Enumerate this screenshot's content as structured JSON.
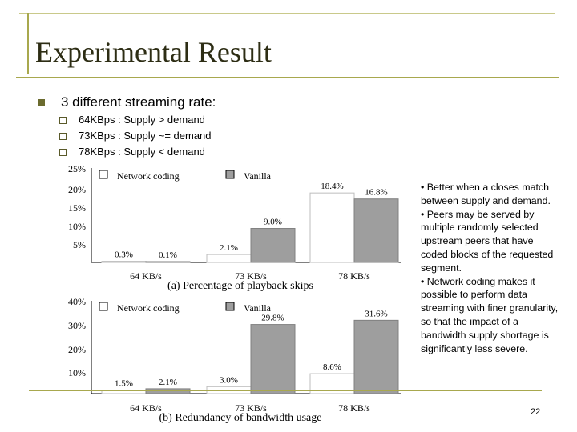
{
  "slide": {
    "title": "Experimental Result",
    "bullet": "3 different streaming rate:",
    "sub_bullets": [
      "64KBps : Supply > demand",
      "73KBps : Supply ~= demand",
      "78KBps : Supply < demand"
    ],
    "notes": [
      "• Better when a closes match between supply and demand.",
      "• Peers may be served by multiple randomly selected upstream peers that have coded blocks of the requested segment.",
      "• Network coding makes it possible to perform data streaming with finer granularity, so that the impact of a bandwidth supply shortage is significantly less severe."
    ],
    "page_number": "22"
  },
  "chart_data": [
    {
      "type": "bar",
      "title": "(a) Percentage of playback skips",
      "categories": [
        "64 KB/s",
        "73 KB/s",
        "78 KB/s"
      ],
      "series": [
        {
          "name": "Network coding",
          "values": [
            0.3,
            2.1,
            18.4
          ],
          "labels": [
            "0.3%",
            "2.1%",
            "18.4%"
          ],
          "color": "#ffffff"
        },
        {
          "name": "Vanilla",
          "values": [
            0.1,
            9.0,
            16.8
          ],
          "labels": [
            "0.1%",
            "9.0%",
            "16.8%"
          ],
          "color": "#9e9e9e"
        }
      ],
      "yticks": [
        "25%",
        "20%",
        "15%",
        "10%",
        "5%"
      ],
      "ylim": [
        0,
        25
      ],
      "legend_position": "top",
      "grid": false
    },
    {
      "type": "bar",
      "title": "(b) Redundancy of bandwidth usage",
      "categories": [
        "64 KB/s",
        "73 KB/s",
        "78 KB/s"
      ],
      "series": [
        {
          "name": "Network coding",
          "values": [
            1.5,
            3.0,
            8.6
          ],
          "labels": [
            "1.5%",
            "3.0%",
            "8.6%"
          ],
          "color": "#ffffff"
        },
        {
          "name": "Vanilla",
          "values": [
            2.1,
            29.8,
            31.6
          ],
          "labels": [
            "2.1%",
            "29.8%",
            "31.6%"
          ],
          "color": "#9e9e9e"
        }
      ],
      "yticks": [
        "40%",
        "30%",
        "20%",
        "10%"
      ],
      "ylim": [
        0,
        40
      ],
      "legend_position": "top",
      "grid": false
    }
  ]
}
